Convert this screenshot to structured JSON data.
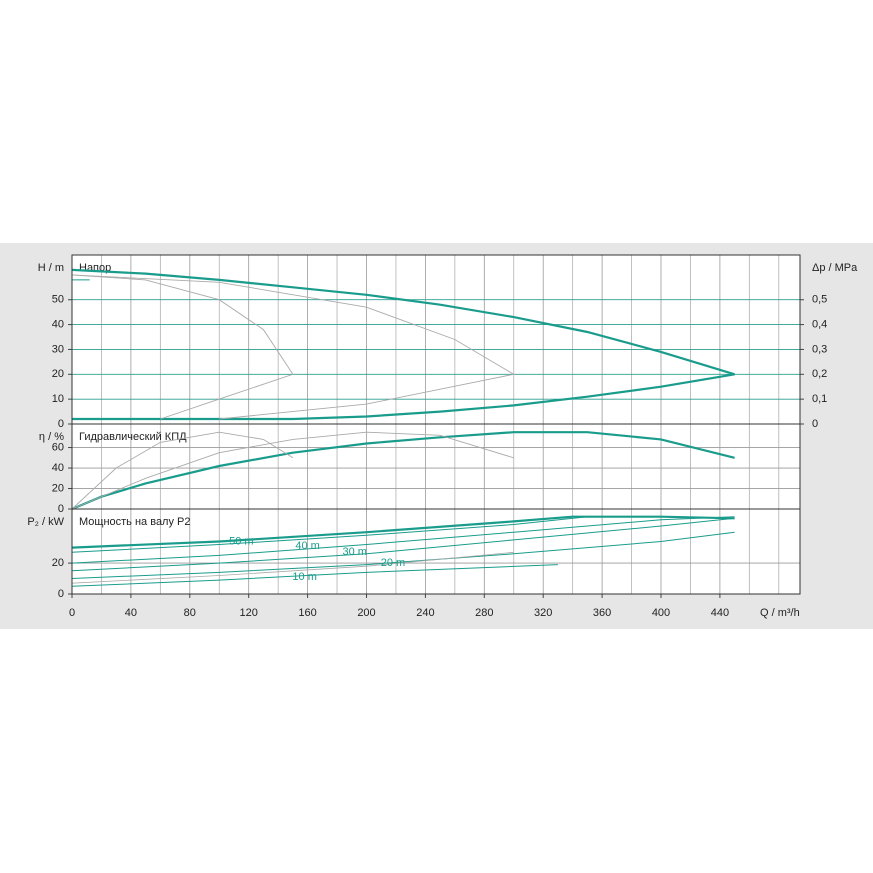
{
  "chart_data": [
    {
      "type": "line",
      "title": "Напор",
      "ylabel": "H / m",
      "y2label": "Δp / MPa",
      "ylim": [
        0,
        68
      ],
      "yticks": [
        0,
        10,
        20,
        30,
        40,
        50
      ],
      "grid_color": "#2a9d8f",
      "y2lim": [
        0,
        0.68
      ],
      "y2ticks": [
        0,
        {
          "value": 0.1,
          "label": "0,1"
        },
        {
          "value": 0.2,
          "label": "0,2"
        },
        {
          "value": 0.3,
          "label": "0,3"
        },
        {
          "value": 0.4,
          "label": "0,4"
        },
        {
          "value": 0.5,
          "label": "0,5"
        }
      ],
      "series": [
        {
          "color": "#1a9c8c",
          "width": 2.2,
          "x": [
            0,
            50,
            100,
            150,
            200,
            250,
            300,
            350,
            400,
            450
          ],
          "values": [
            62,
            60.5,
            58,
            55,
            52,
            48,
            43,
            37,
            29,
            20
          ]
        },
        {
          "color": "#1a9c8c",
          "width": 2.2,
          "x": [
            0,
            100,
            150,
            200,
            250,
            300,
            350,
            400,
            450
          ],
          "values": [
            2,
            2,
            2,
            3,
            5,
            7.5,
            11,
            15,
            20
          ]
        },
        {
          "color": "#aaaaaa",
          "width": 0.9,
          "x": [
            0,
            50,
            100,
            130,
            150,
            100,
            60
          ],
          "values": [
            60,
            58,
            50,
            38,
            20,
            10,
            2
          ]
        },
        {
          "color": "#aaaaaa",
          "width": 0.9,
          "x": [
            0,
            100,
            200,
            260,
            300,
            200,
            100
          ],
          "values": [
            60,
            57,
            47,
            34,
            20,
            8,
            2
          ]
        },
        {
          "color": "#1a9c8c",
          "width": 1,
          "x": [
            0,
            12
          ],
          "values": [
            58,
            58
          ]
        }
      ]
    },
    {
      "type": "line",
      "title": "Гидравлический КПД",
      "ylabel": "η / %",
      "ylim": [
        0,
        83
      ],
      "yticks": [
        0,
        20,
        40,
        60
      ],
      "grid_color": "#9a9a9a",
      "series": [
        {
          "color": "#1a9c8c",
          "width": 2.2,
          "x": [
            0,
            20,
            50,
            100,
            150,
            200,
            250,
            300,
            350,
            400,
            450
          ],
          "values": [
            0,
            12,
            25,
            42,
            55,
            64,
            70,
            75,
            75,
            68,
            50
          ]
        },
        {
          "color": "#aaaaaa",
          "width": 0.9,
          "x": [
            0,
            30,
            60,
            100,
            130,
            150
          ],
          "values": [
            0,
            40,
            65,
            75,
            68,
            50
          ]
        },
        {
          "color": "#aaaaaa",
          "width": 0.9,
          "x": [
            0,
            50,
            100,
            150,
            200,
            250,
            300
          ],
          "values": [
            0,
            30,
            55,
            68,
            75,
            72,
            50
          ]
        }
      ]
    },
    {
      "type": "line",
      "title": "Мощность на валу P2",
      "ylabel": "P₂ / kW",
      "xlabel": "Q / m³/h",
      "ylim": [
        0,
        55
      ],
      "yticks": [
        0,
        20
      ],
      "grid_color": "#9a9a9a",
      "xlim": [
        0,
        494.4
      ],
      "xticks": [
        0,
        40,
        80,
        120,
        160,
        200,
        240,
        280,
        320,
        360,
        400,
        440
      ],
      "xminorticks": [
        20,
        60,
        100,
        140,
        180,
        220,
        260,
        300,
        340,
        380,
        420,
        460,
        480
      ],
      "series": [
        {
          "color": "#1a9c8c",
          "width": 2.2,
          "x": [
            0,
            100,
            200,
            300,
            340,
            400,
            450
          ],
          "values": [
            30,
            34,
            40,
            47,
            50,
            50,
            49
          ]
        },
        {
          "color": "#1a9c8c",
          "width": 1,
          "x": [
            0,
            100,
            200,
            300,
            350,
            400
          ],
          "values": [
            27,
            32,
            38,
            45,
            50,
            50
          ]
        },
        {
          "color": "#1a9c8c",
          "width": 1,
          "x": [
            0,
            100,
            200,
            300,
            400,
            450
          ],
          "values": [
            20,
            25,
            32,
            40,
            48,
            50
          ]
        },
        {
          "color": "#1a9c8c",
          "width": 1,
          "x": [
            0,
            100,
            200,
            300,
            400,
            450
          ],
          "values": [
            15,
            20,
            26,
            35,
            44,
            49
          ]
        },
        {
          "color": "#1a9c8c",
          "width": 1,
          "x": [
            0,
            100,
            200,
            300,
            400,
            450
          ],
          "values": [
            10,
            14,
            19,
            26,
            34,
            40
          ]
        },
        {
          "color": "#1a9c8c",
          "width": 1,
          "x": [
            0,
            100,
            200,
            330
          ],
          "values": [
            5,
            9,
            14,
            19
          ]
        },
        {
          "color": "#aaaaaa",
          "width": 0.8,
          "x": [
            0,
            100,
            200,
            300
          ],
          "values": [
            7,
            12,
            18,
            27
          ]
        }
      ],
      "annotations": [
        {
          "text": "50 m",
          "x": 115,
          "y": 34
        },
        {
          "text": "40 m",
          "x": 160,
          "y": 31
        },
        {
          "text": "30 m",
          "x": 192,
          "y": 27
        },
        {
          "text": "20 m",
          "x": 218,
          "y": 20
        },
        {
          "text": "10 m",
          "x": 158,
          "y": 11
        }
      ]
    }
  ]
}
